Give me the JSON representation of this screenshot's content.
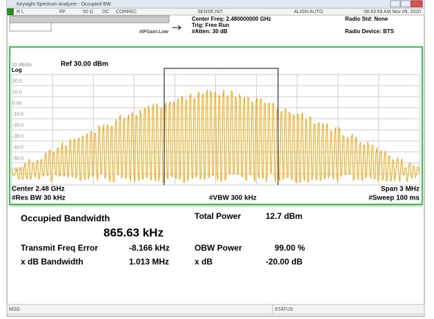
{
  "window": {
    "title": "Keysight Spectrum Analyzer - Occupied BW"
  },
  "status_bar": {
    "rl": "R L",
    "rf": "RF",
    "impedance": "50 Ω",
    "coupling": "DC",
    "correction": "CORREC",
    "sense": "SENSE:INT",
    "align": "ALIGN AUTO",
    "datetime": "08:43:59 AM Nov 09, 2020"
  },
  "settings": {
    "center_freq": "Center Freq: 2.480000000 GHz",
    "trig": "Trig: Free Run",
    "atten": "#Atten: 30 dB",
    "ifgain": "#IFGain:Low",
    "radio_std": "Radio Std: None",
    "radio_device": "Radio Device: BTS"
  },
  "plot": {
    "scale": "10 dB/div",
    "ref": "Ref 30.00 dBm",
    "log": "Log",
    "y_labels": [
      "20.0",
      "10.0",
      "0.00",
      "-10.0",
      "-20.0",
      "-30.0",
      "-40.0",
      "-50.0",
      "-60.0"
    ],
    "center": "Center 2.48 GHz",
    "span": "Span 3 MHz",
    "res_bw": "#Res BW 30 kHz",
    "vbw": "#VBW 300 kHz",
    "sweep": "#Sweep 100 ms"
  },
  "results": {
    "title": "Occupied Bandwidth",
    "obw": "865.63 kHz",
    "rows": [
      [
        "Total Power",
        "12.7 dBm"
      ],
      [
        "Transmit Freq Error",
        "-8.166 kHz"
      ],
      [
        "OBW Power",
        "99.00 %"
      ],
      [
        "x dB Bandwidth",
        "1.013 MHz"
      ],
      [
        "x dB",
        "-20.00 dB"
      ]
    ]
  },
  "footer": {
    "msg": "MSG",
    "status": "STATUS"
  }
}
